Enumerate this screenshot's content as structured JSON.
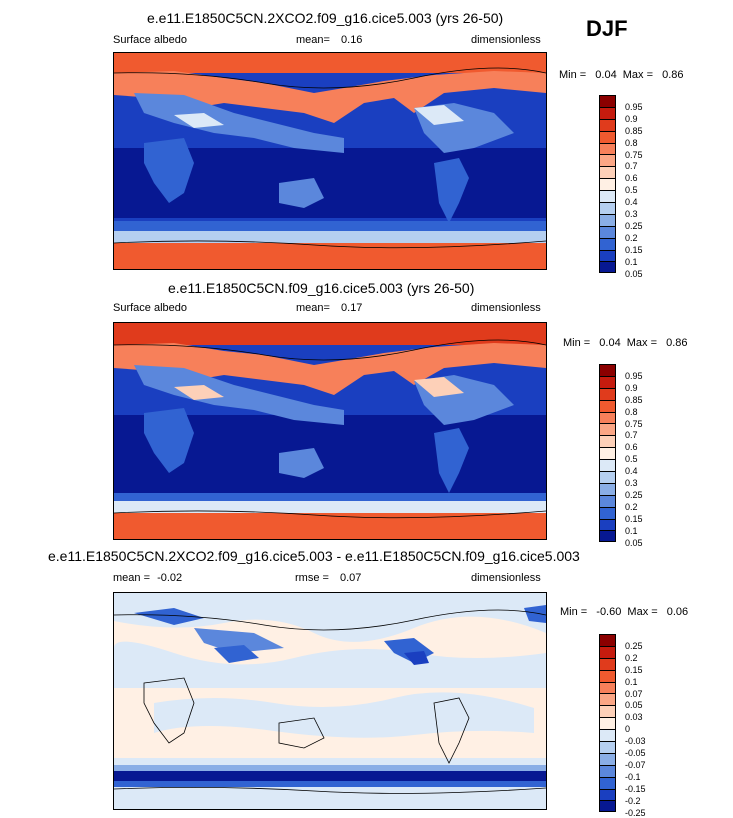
{
  "season": "DJF",
  "panels": [
    {
      "title": "e.e11.E1850C5CN.2XCO2.f09_g16.cice5.003 (yrs 26-50)",
      "left_label": "Surface albedo",
      "mid_label": "mean=",
      "mid_value": "0.16",
      "right_label": "dimensionless",
      "min_text": "Min =",
      "min_value": "0.04",
      "max_text": "Max =",
      "max_value": "0.86",
      "levels": [
        "0.95",
        "0.9",
        "0.85",
        "0.8",
        "0.75",
        "0.7",
        "0.6",
        "0.5",
        "0.4",
        "0.3",
        "0.25",
        "0.2",
        "0.15",
        "0.1",
        "0.05"
      ]
    },
    {
      "title": "e.e11.E1850C5CN.f09_g16.cice5.003 (yrs 26-50)",
      "left_label": "Surface albedo",
      "mid_label": "mean=",
      "mid_value": "0.17",
      "right_label": "dimensionless",
      "min_text": "Min =",
      "min_value": "0.04",
      "max_text": "Max =",
      "max_value": "0.86",
      "levels": [
        "0.95",
        "0.9",
        "0.85",
        "0.8",
        "0.75",
        "0.7",
        "0.6",
        "0.5",
        "0.4",
        "0.3",
        "0.25",
        "0.2",
        "0.15",
        "0.1",
        "0.05"
      ]
    },
    {
      "title": "e.e11.E1850C5CN.2XCO2.f09_g16.cice5.003 - e.e11.E1850C5CN.f09_g16.cice5.003",
      "left_label": "mean =",
      "left_value": "-0.02",
      "mid_label": "rmse =",
      "mid_value": "0.07",
      "right_label": "dimensionless",
      "min_text": "Min =",
      "min_value": "-0.60",
      "max_text": "Max =",
      "max_value": "0.06",
      "levels": [
        "0.25",
        "0.2",
        "0.15",
        "0.1",
        "0.07",
        "0.05",
        "0.03",
        "0",
        "-0.03",
        "-0.05",
        "-0.07",
        "-0.1",
        "-0.15",
        "-0.2",
        "-0.25"
      ]
    }
  ],
  "colors": {
    "abs_scale": [
      "#8b0000",
      "#c51b0e",
      "#e03b1c",
      "#f05a2f",
      "#f7805a",
      "#fba685",
      "#fdd0b8",
      "#fff0e4",
      "#dce9f7",
      "#b5cff0",
      "#8aaee6",
      "#5b87dc",
      "#3163d2",
      "#1a3fc0",
      "#071892"
    ],
    "diff_scale": [
      "#8b0000",
      "#c51b0e",
      "#e03b1c",
      "#f05a2f",
      "#f7805a",
      "#fba685",
      "#fdd0b8",
      "#fff0e4",
      "#dce9f7",
      "#b5cff0",
      "#8aaee6",
      "#5b87dc",
      "#3163d2",
      "#1a3fc0",
      "#071892"
    ]
  }
}
